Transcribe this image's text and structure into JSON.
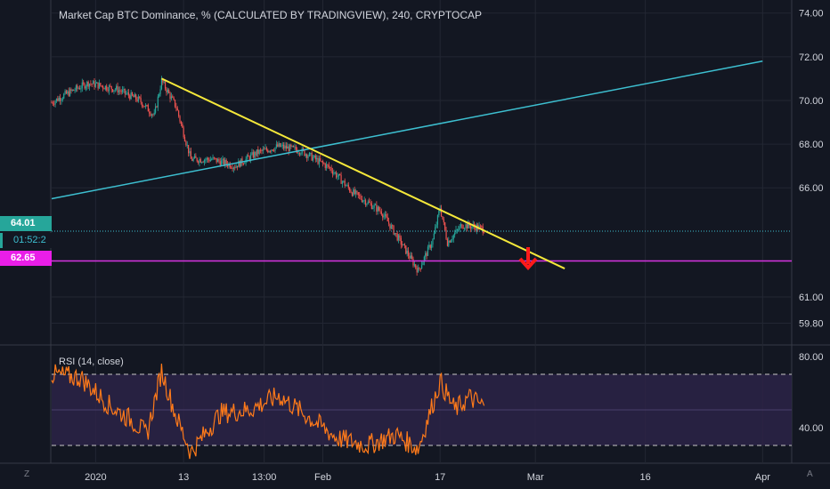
{
  "title": "Market Cap BTC Dominance, % (CALCULATED BY TRADINGVIEW), 240, CRYPTOCAP",
  "rsi_label": "RSI (14, close)",
  "price_axis": [
    "74.00",
    "72.00",
    "70.00",
    "68.00",
    "66.00",
    "61.00",
    "59.80"
  ],
  "rsi_axis": [
    "80.00",
    "40.00"
  ],
  "time_axis": [
    "2020",
    "13",
    "13:00",
    "Feb",
    "17",
    "Mar",
    "16",
    "Apr"
  ],
  "tags": {
    "current_price": "64.01",
    "countdown": "01:52:2",
    "support_level": "62.65"
  },
  "corner_left": "Z",
  "corner_right": "A",
  "colors": {
    "background": "#131722",
    "candle_up": "#26a69a",
    "candle_down": "#ef5350",
    "trendline_down": "#f5e83a",
    "trendline_up": "#3dbfd0",
    "support_line": "#d633e0",
    "rsi_line": "#ff7a1a",
    "rsi_band": "#2c2347",
    "arrow": "#ff1a1a"
  },
  "icons": [
    "down-arrow-icon"
  ],
  "chart_data": {
    "type": "line",
    "main": {
      "y_axis": "Market Cap BTC Dominance, %",
      "ylim": [
        58.8,
        74.6
      ],
      "waypoints": [
        {
          "x": "Dec 26",
          "y": 69.9
        },
        {
          "x": "Dec 28",
          "y": 70.3
        },
        {
          "x": "Dec 31",
          "y": 70.8
        },
        {
          "x": "Jan 4",
          "y": 70.5
        },
        {
          "x": "Jan 7",
          "y": 70.0
        },
        {
          "x": "Jan 9",
          "y": 69.3
        },
        {
          "x": "Jan 10",
          "y": 70.9
        },
        {
          "x": "Jan 12",
          "y": 69.7
        },
        {
          "x": "Jan 14",
          "y": 67.3
        },
        {
          "x": "Jan 17",
          "y": 67.3
        },
        {
          "x": "Jan 20",
          "y": 67.0
        },
        {
          "x": "Jan 23",
          "y": 67.6
        },
        {
          "x": "Jan 26",
          "y": 67.9
        },
        {
          "x": "Jan 29",
          "y": 67.7
        },
        {
          "x": "Feb 2",
          "y": 66.9
        },
        {
          "x": "Feb 5",
          "y": 65.8
        },
        {
          "x": "Feb 9",
          "y": 64.9
        },
        {
          "x": "Feb 12",
          "y": 63.3
        },
        {
          "x": "Feb 14",
          "y": 62.2
        },
        {
          "x": "Feb 16",
          "y": 63.6
        },
        {
          "x": "Feb 17",
          "y": 65.1
        },
        {
          "x": "Feb 18",
          "y": 63.5
        },
        {
          "x": "Feb 20",
          "y": 64.3
        },
        {
          "x": "Feb 22",
          "y": 64.2
        },
        {
          "x": "Feb 23",
          "y": 64.1
        }
      ],
      "trendline_down": [
        {
          "x": "Jan 10",
          "y": 71.0
        },
        {
          "x": "Mar 5",
          "y": 62.3
        }
      ],
      "trendline_up": [
        {
          "x": "Dec 26",
          "y": 65.5
        },
        {
          "x": "Apr 1",
          "y": 71.8
        }
      ],
      "horizontal_levels": [
        64.01,
        62.65
      ]
    },
    "rsi": {
      "ylim": [
        20,
        86
      ],
      "upper_band": 70,
      "lower_band": 30,
      "waypoints": [
        {
          "x": "Dec 26",
          "y": 70
        },
        {
          "x": "Dec 30",
          "y": 68
        },
        {
          "x": "Jan 3",
          "y": 52
        },
        {
          "x": "Jan 6",
          "y": 44
        },
        {
          "x": "Jan 8",
          "y": 36
        },
        {
          "x": "Jan 10",
          "y": 72
        },
        {
          "x": "Jan 12",
          "y": 46
        },
        {
          "x": "Jan 14",
          "y": 26
        },
        {
          "x": "Jan 18",
          "y": 48
        },
        {
          "x": "Jan 22",
          "y": 50
        },
        {
          "x": "Jan 26",
          "y": 58
        },
        {
          "x": "Jan 30",
          "y": 46
        },
        {
          "x": "Feb 3",
          "y": 34
        },
        {
          "x": "Feb 7",
          "y": 30
        },
        {
          "x": "Feb 11",
          "y": 36
        },
        {
          "x": "Feb 14",
          "y": 28
        },
        {
          "x": "Feb 17",
          "y": 66
        },
        {
          "x": "Feb 19",
          "y": 50
        },
        {
          "x": "Feb 21",
          "y": 57
        },
        {
          "x": "Feb 23",
          "y": 52
        }
      ]
    }
  }
}
